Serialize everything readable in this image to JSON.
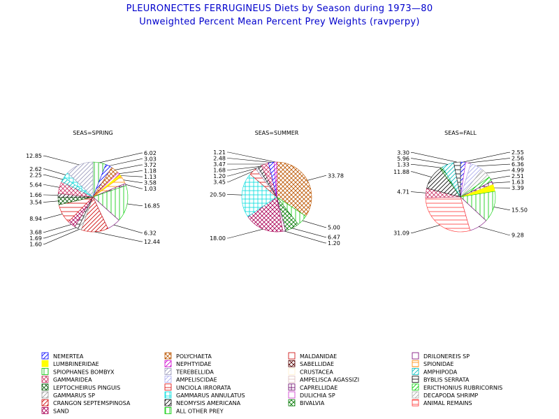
{
  "title": "PLEURONECTES FERRUGINEUS Diets by Season during 1973—80",
  "subtitle": "Unweighted Percent Mean Percent Prey  Weights (ravperpy)",
  "legend": [
    {
      "name": "NEMERTEA",
      "color": "#0000ff",
      "pattern": "diag"
    },
    {
      "name": "POLYCHAETA",
      "color": "#bb5500",
      "pattern": "cross"
    },
    {
      "name": "MALDANIDAE",
      "color": "#cc0000",
      "pattern": "empty"
    },
    {
      "name": "DRILONEREIS SP",
      "color": "#770077",
      "pattern": "empty"
    },
    {
      "name": "LUMBRINERIDAE",
      "color": "#ffff00",
      "pattern": "solid"
    },
    {
      "name": "NEPHTYIDAE",
      "color": "#cc00cc",
      "pattern": "diag"
    },
    {
      "name": "SABELLIDAE",
      "color": "#550000",
      "pattern": "cross"
    },
    {
      "name": "SPIONIDAE",
      "color": "#ff8800",
      "pattern": "hlines"
    },
    {
      "name": "SPIOPHANES BOMBYX",
      "color": "#00bb00",
      "pattern": "vlines"
    },
    {
      "name": "TEREBELLIDA",
      "color": "#9999bb",
      "pattern": "diag"
    },
    {
      "name": "CRUSTACEA",
      "color": "#ffeecc",
      "pattern": "empty"
    },
    {
      "name": "AMPHIPODA",
      "color": "#00bbbb",
      "pattern": "diag"
    },
    {
      "name": "GAMMARIDEA",
      "color": "#cc3366",
      "pattern": "cross"
    },
    {
      "name": "AMPELISCIDAE",
      "color": "#aaaaee",
      "pattern": "diag"
    },
    {
      "name": "AMPELISCA AGASSIZI",
      "color": "#ddbbbb",
      "pattern": "hlines"
    },
    {
      "name": "BYBLIS SERRATA",
      "color": "#000000",
      "pattern": "hlines"
    },
    {
      "name": "LEPTOCHEIRUS PINGUIS",
      "color": "#005500",
      "pattern": "cross"
    },
    {
      "name": "UNCIOLA IRRORATA",
      "color": "#dd0000",
      "pattern": "hlines"
    },
    {
      "name": "CAPRELLIDAE",
      "color": "#660066",
      "pattern": "grid"
    },
    {
      "name": "ERICTHONIUS RUBRICORNIS",
      "color": "#00cc00",
      "pattern": "diag"
    },
    {
      "name": "GAMMARUS SP",
      "color": "#999999",
      "pattern": "diag"
    },
    {
      "name": "GAMMARUS ANNULATUS",
      "color": "#00dddd",
      "pattern": "grid"
    },
    {
      "name": "DULICHIA SP",
      "color": "#cc33cc",
      "pattern": "empty"
    },
    {
      "name": "DECAPODA SHRIMP",
      "color": "#aaaaaa",
      "pattern": "diag"
    },
    {
      "name": "CRANGON SEPTEMSPINOSA",
      "color": "#cc0000",
      "pattern": "diag"
    },
    {
      "name": "NEOMYSIS AMERICANA",
      "color": "#000000",
      "pattern": "diag"
    },
    {
      "name": "BIVALVIA",
      "color": "#007700",
      "pattern": "cross"
    },
    {
      "name": "ANIMAL REMAINS",
      "color": "#ff3333",
      "pattern": "hlines"
    },
    {
      "name": "SAND",
      "color": "#aa0055",
      "pattern": "cross"
    },
    {
      "name": "ALL OTHER PREY",
      "color": "#00cc00",
      "pattern": "vlines"
    }
  ],
  "chart_data": [
    {
      "type": "pie",
      "title": "SEAS=SPRING",
      "slices": [
        {
          "label": "6.02",
          "value": 6.02,
          "category": "SPIOPHANES BOMBYX"
        },
        {
          "label": "3.03",
          "value": 3.03,
          "category": "NEMERTEA"
        },
        {
          "label": "3.72",
          "value": 3.72,
          "category": "POLYCHAETA"
        },
        {
          "label": "1.18",
          "value": 1.18,
          "category": "NEPHTYIDAE"
        },
        {
          "label": "1.13",
          "value": 1.13,
          "category": "LUMBRINERIDAE"
        },
        {
          "label": "3.58",
          "value": 3.58,
          "category": "SPIONIDAE"
        },
        {
          "label": "1.03",
          "value": 1.03,
          "category": "CAPRELLIDAE"
        },
        {
          "label": "16.85",
          "value": 16.85,
          "category": "ALL OTHER PREY"
        },
        {
          "label": "6.32",
          "value": 6.32,
          "category": "DRILONEREIS SP"
        },
        {
          "label": "12.44",
          "value": 12.44,
          "category": "CRANGON SEPTEMSPINOSA"
        },
        {
          "label": "1.60",
          "value": 1.6,
          "category": "GAMMARUS SP"
        },
        {
          "label": "1.69",
          "value": 1.69,
          "category": "BYBLIS SERRATA"
        },
        {
          "label": "3.68",
          "value": 3.68,
          "category": "SAND"
        },
        {
          "label": "8.94",
          "value": 8.94,
          "category": "UNCIOLA IRRORATA"
        },
        {
          "label": "3.54",
          "value": 3.54,
          "category": "LEPTOCHEIRUS PINGUIS"
        },
        {
          "label": "1.66",
          "value": 1.66,
          "category": "NEOMYSIS AMERICANA"
        },
        {
          "label": "5.64",
          "value": 5.64,
          "category": "GAMMARIDEA"
        },
        {
          "label": "2.25",
          "value": 2.25,
          "category": "AMPHIPODA"
        },
        {
          "label": "2.62",
          "value": 2.62,
          "category": "GAMMARUS ANNULATUS"
        },
        {
          "label": "12.85",
          "value": 12.85,
          "category": "TEREBELLIDA"
        }
      ]
    },
    {
      "type": "pie",
      "title": "SEAS=SUMMER",
      "slices": [
        {
          "label": "33.78",
          "value": 33.78,
          "category": "POLYCHAETA"
        },
        {
          "label": "5.00",
          "value": 5.0,
          "category": "ALL OTHER PREY"
        },
        {
          "label": "6.47",
          "value": 6.47,
          "category": "BIVALVIA"
        },
        {
          "label": "1.20",
          "value": 1.2,
          "category": "DRILONEREIS SP"
        },
        {
          "label": "18.00",
          "value": 18.0,
          "category": "SAND"
        },
        {
          "label": "20.50",
          "value": 20.5,
          "category": "GAMMARUS ANNULATUS"
        },
        {
          "label": "3.45",
          "value": 3.45,
          "category": "UNCIOLA IRRORATA"
        },
        {
          "label": "1.20",
          "value": 1.2,
          "category": "TEREBELLIDA"
        },
        {
          "label": "1.68",
          "value": 1.68,
          "category": "NEOMYSIS AMERICANA"
        },
        {
          "label": "3.47",
          "value": 3.47,
          "category": "GAMMARIDEA"
        },
        {
          "label": "2.48",
          "value": 2.48,
          "category": "NEMERTEA"
        },
        {
          "label": "1.21",
          "value": 1.21,
          "category": "NEPHTYIDAE"
        }
      ]
    },
    {
      "type": "pie",
      "title": "SEAS=FALL",
      "slices": [
        {
          "label": "2.55",
          "value": 2.55,
          "category": "NEMERTEA"
        },
        {
          "label": "2.56",
          "value": 2.56,
          "category": "DULICHIA SP"
        },
        {
          "label": "6.36",
          "value": 6.36,
          "category": "AMPELISCIDAE"
        },
        {
          "label": "4.99",
          "value": 4.99,
          "category": "DECAPODA SHRIMP"
        },
        {
          "label": "2.51",
          "value": 2.51,
          "category": "ERICTHONIUS RUBRICORNIS"
        },
        {
          "label": "1.63",
          "value": 1.63,
          "category": "CAPRELLIDAE"
        },
        {
          "label": "3.39",
          "value": 3.39,
          "category": "LUMBRINERIDAE"
        },
        {
          "label": "15.50",
          "value": 15.5,
          "category": "ALL OTHER PREY"
        },
        {
          "label": "9.28",
          "value": 9.28,
          "category": "DRILONEREIS SP"
        },
        {
          "label": "31.09",
          "value": 31.09,
          "category": "ANIMAL REMAINS"
        },
        {
          "label": "4.71",
          "value": 4.71,
          "category": "GAMMARIDEA"
        },
        {
          "label": "11.88",
          "value": 11.88,
          "category": "NEOMYSIS AMERICANA"
        },
        {
          "label": "1.33",
          "value": 1.33,
          "category": "BIVALVIA"
        },
        {
          "label": "5.96",
          "value": 5.96,
          "category": "AMPHIPODA"
        },
        {
          "label": "3.30",
          "value": 3.3,
          "category": "BYBLIS SERRATA"
        }
      ]
    }
  ]
}
